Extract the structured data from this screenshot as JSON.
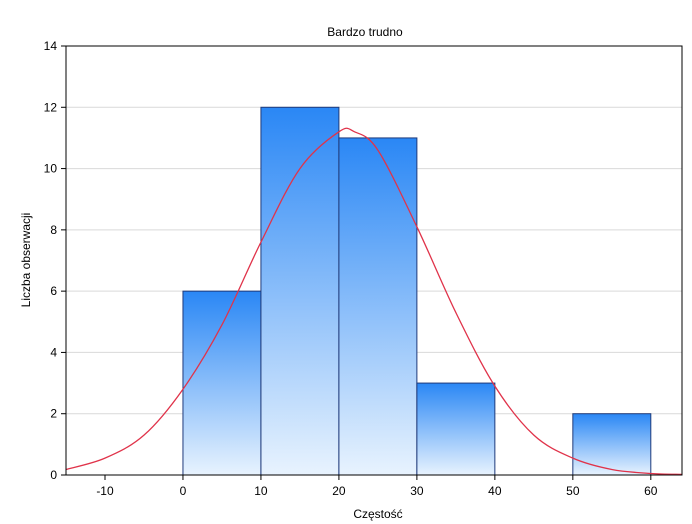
{
  "chart_data": {
    "type": "bar",
    "title": "Bardzo trudno",
    "xlabel": "Częstość",
    "ylabel": "Liczba obserwacji",
    "bins": [
      {
        "from": 0,
        "to": 10,
        "value": 6
      },
      {
        "from": 10,
        "to": 20,
        "value": 12
      },
      {
        "from": 20,
        "to": 30,
        "value": 11
      },
      {
        "from": 30,
        "to": 40,
        "value": 3
      },
      {
        "from": 40,
        "to": 50,
        "value": 0
      },
      {
        "from": 50,
        "to": 60,
        "value": 2
      }
    ],
    "xlim": [
      -15,
      64
    ],
    "ylim": [
      0,
      14
    ],
    "xticks": [
      -10,
      0,
      10,
      20,
      30,
      40,
      50,
      60
    ],
    "yticks": [
      0,
      2,
      4,
      6,
      8,
      10,
      12,
      14
    ],
    "grid": true,
    "curve": {
      "type": "normal",
      "points": [
        [
          -15,
          0.18
        ],
        [
          -10,
          0.55
        ],
        [
          -5,
          1.3
        ],
        [
          0,
          2.8
        ],
        [
          5,
          4.9
        ],
        [
          10,
          7.6
        ],
        [
          15,
          10.0
        ],
        [
          20,
          11.2
        ],
        [
          22,
          11.2
        ],
        [
          25,
          10.6
        ],
        [
          30,
          8.1
        ],
        [
          35,
          5.3
        ],
        [
          40,
          2.9
        ],
        [
          45,
          1.3
        ],
        [
          50,
          0.55
        ],
        [
          55,
          0.18
        ],
        [
          60,
          0.05
        ],
        [
          64,
          0.02
        ]
      ]
    },
    "colors": {
      "bar_top": "#2A87F5",
      "bar_bottom": "#E8F3FE",
      "bar_edge": "#1F3A7A",
      "curve": "#E0334A",
      "grid": "#D9D9D9",
      "plot_border": "#000000"
    }
  }
}
